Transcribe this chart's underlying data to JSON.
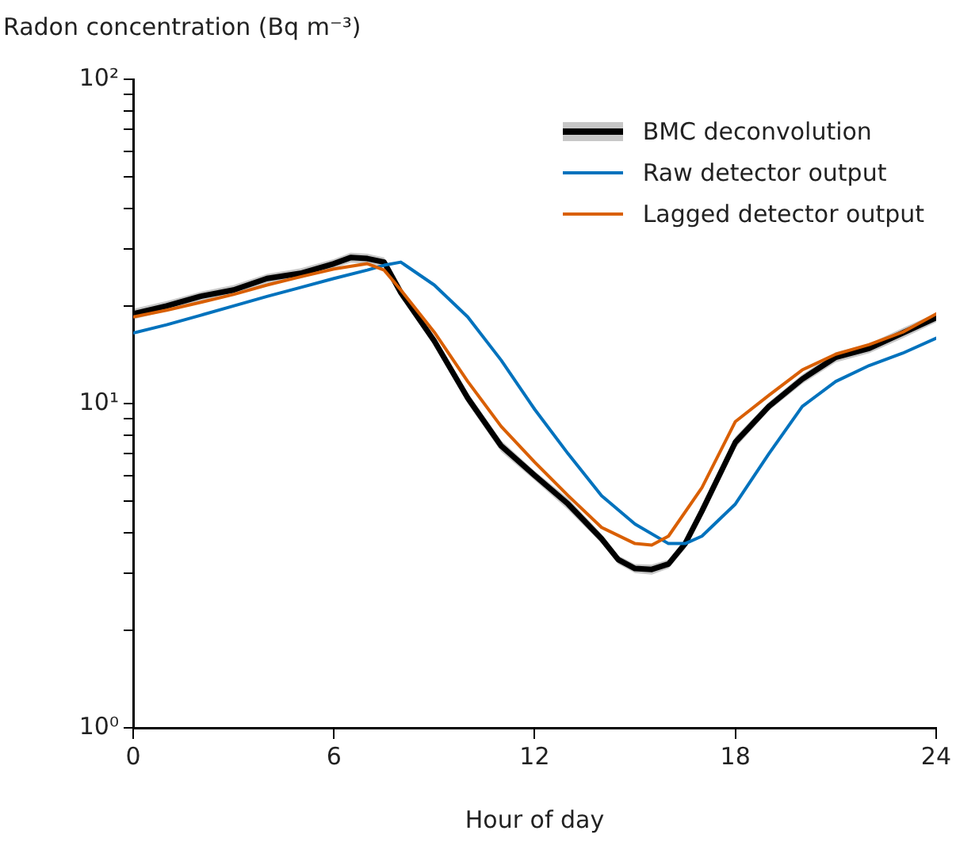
{
  "chart_data": {
    "type": "line",
    "ylabel": "Radon concentration (Bq m⁻³)",
    "xlabel": "Hour of day",
    "x": [
      0,
      1,
      2,
      3,
      4,
      5,
      6,
      6.5,
      7,
      7.5,
      8,
      9,
      10,
      11,
      12,
      13,
      14,
      14.5,
      15,
      15.5,
      16,
      16.5,
      17,
      18,
      19,
      20,
      21,
      22,
      23,
      24
    ],
    "series": [
      {
        "name": "BMC deconvolution",
        "color": "#000000",
        "values": [
          18.9,
          20,
          21.4,
          22.4,
          24.3,
          25.2,
          27,
          28.2,
          28,
          27.3,
          22,
          15.6,
          10.4,
          7.4,
          6.0,
          4.9,
          3.83,
          3.3,
          3.1,
          3.08,
          3.2,
          3.7,
          4.66,
          7.6,
          9.8,
          11.9,
          13.9,
          14.8,
          16.5,
          18.4
        ],
        "lower": [
          18.2,
          19.3,
          20.7,
          21.6,
          23.5,
          24.3,
          26.1,
          27.2,
          27,
          26.4,
          21.2,
          15.1,
          10,
          7.1,
          5.8,
          4.7,
          3.7,
          3.2,
          3.0,
          2.97,
          3.1,
          3.57,
          4.5,
          7.3,
          9.5,
          11.5,
          13.4,
          14.3,
          15.9,
          17.8
        ],
        "upper": [
          19.6,
          20.7,
          22.1,
          23.2,
          25.1,
          26.1,
          27.9,
          29.2,
          29,
          28.2,
          22.8,
          16.1,
          10.8,
          7.7,
          6.2,
          5.1,
          3.96,
          3.4,
          3.2,
          3.19,
          3.3,
          3.83,
          4.82,
          7.9,
          10.1,
          12.3,
          14.4,
          15.3,
          17.1,
          19.0
        ]
      },
      {
        "name": "Raw detector output",
        "color": "#0072bd",
        "x": [
          0,
          1,
          2,
          3,
          4,
          5,
          6,
          7,
          7.5,
          8,
          9,
          10,
          11,
          12,
          13,
          14,
          15,
          16,
          16.5,
          17,
          18,
          19,
          20,
          21,
          22,
          23,
          24
        ],
        "values": [
          16.5,
          17.5,
          18.7,
          20,
          21.4,
          22.8,
          24.3,
          25.8,
          26.7,
          27.3,
          23.2,
          18.5,
          13.6,
          9.6,
          7.0,
          5.2,
          4.25,
          3.7,
          3.7,
          3.9,
          4.9,
          7.0,
          9.8,
          11.7,
          13.1,
          14.3,
          15.9
        ]
      },
      {
        "name": "Lagged detector output",
        "color": "#d95f02",
        "x": [
          0,
          1,
          2,
          3,
          4,
          5,
          6,
          7,
          7.5,
          8,
          9,
          10,
          11,
          12,
          13,
          14,
          15,
          15.5,
          16,
          17,
          18,
          19,
          20,
          21,
          22,
          23,
          24
        ],
        "values": [
          18.5,
          19.4,
          20.5,
          21.7,
          23.2,
          24.6,
          26,
          27,
          25.8,
          22.4,
          16.6,
          11.7,
          8.5,
          6.6,
          5.2,
          4.15,
          3.7,
          3.66,
          3.9,
          5.5,
          8.8,
          10.6,
          12.7,
          14.2,
          15.2,
          16.6,
          18.9
        ]
      }
    ],
    "log": "y",
    "ylim": [
      1,
      100
    ],
    "yticks": [
      {
        "value": 1,
        "label": "10⁰"
      },
      {
        "value": 2,
        "label": null
      },
      {
        "value": 3,
        "label": null
      },
      {
        "value": 4,
        "label": null
      },
      {
        "value": 5,
        "label": null
      },
      {
        "value": 6,
        "label": null
      },
      {
        "value": 7,
        "label": null
      },
      {
        "value": 8,
        "label": null
      },
      {
        "value": 9,
        "label": null
      },
      {
        "value": 10,
        "label": "10¹"
      },
      {
        "value": 20,
        "label": null
      },
      {
        "value": 30,
        "label": null
      },
      {
        "value": 40,
        "label": null
      },
      {
        "value": 50,
        "label": null
      },
      {
        "value": 60,
        "label": null
      },
      {
        "value": 70,
        "label": null
      },
      {
        "value": 80,
        "label": null
      },
      {
        "value": 90,
        "label": null
      },
      {
        "value": 100,
        "label": "10²"
      }
    ],
    "xlim": [
      0,
      24
    ],
    "xticks": [
      0,
      6,
      12,
      18,
      24
    ],
    "grid": false,
    "legend": "top right",
    "marker": "none",
    "line_style": "solid"
  }
}
